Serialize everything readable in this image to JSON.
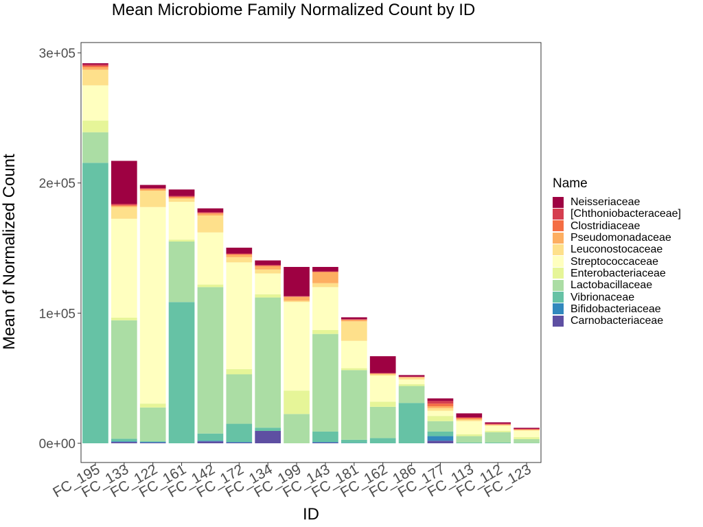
{
  "chart_data": {
    "type": "bar",
    "stacked": true,
    "title": "Mean Microbiome Family Normalized Count by ID",
    "xlabel": "ID",
    "ylabel": "Mean of Normalized Count",
    "ylim": [
      -15000,
      300000
    ],
    "y_ticks": [
      0,
      100000,
      200000,
      300000
    ],
    "y_tick_labels": [
      "0e+00",
      "1e+05",
      "2e+05",
      "3e+05"
    ],
    "grid": false,
    "legend_position": "right",
    "legend_title": "Name",
    "categories": [
      "FC_195",
      "FC_133",
      "FC_122",
      "FC_161",
      "FC_142",
      "FC_172",
      "FC_134",
      "FC_199",
      "FC_143",
      "FC_181",
      "FC_162",
      "FC_186",
      "FC_177",
      "FC_113",
      "FC_112",
      "FC_123"
    ],
    "series": [
      {
        "name": "Neisseriaceae",
        "color": "#9E0142",
        "values": [
          1000,
          33000,
          2500,
          5000,
          3000,
          4500,
          3500,
          22500,
          3500,
          1500,
          13000,
          1200,
          2000,
          3000,
          1000,
          800
        ]
      },
      {
        "name": "[Chthoniobacteraceae]",
        "color": "#D53E4F",
        "values": [
          1000,
          1000,
          500,
          500,
          500,
          500,
          500,
          300,
          200,
          300,
          200,
          200,
          2000,
          500,
          500,
          300
        ]
      },
      {
        "name": "Clostridiaceae",
        "color": "#F46D43",
        "values": [
          1000,
          500,
          500,
          500,
          500,
          300,
          500,
          200,
          300,
          300,
          200,
          200,
          2000,
          500,
          300,
          300
        ]
      },
      {
        "name": "Pseudomonadaceae",
        "color": "#FDAE61",
        "values": [
          2000,
          1000,
          1000,
          1000,
          1500,
          2000,
          2500,
          3000,
          8500,
          1000,
          500,
          300,
          1500,
          1000,
          300,
          300
        ]
      },
      {
        "name": "Leuconostocaceae",
        "color": "#FEE08B",
        "values": [
          12000,
          9000,
          12500,
          2500,
          13000,
          4000,
          3000,
          1000,
          3000,
          15000,
          1000,
          1500,
          2000,
          1000,
          500,
          500
        ]
      },
      {
        "name": "Streptococcaceae",
        "color": "#FFFFBF",
        "values": [
          27000,
          76000,
          151000,
          29000,
          40000,
          82000,
          16000,
          68000,
          33000,
          21000,
          20000,
          3500,
          4000,
          10000,
          4000,
          5000
        ]
      },
      {
        "name": "Enterobacteriaceae",
        "color": "#E6F598",
        "values": [
          9000,
          2000,
          3000,
          1500,
          2000,
          4000,
          2500,
          18000,
          3000,
          1500,
          4000,
          1500,
          4000,
          1500,
          1000,
          1500
        ]
      },
      {
        "name": "Lactobacillaceae",
        "color": "#ABDDA4",
        "values": [
          23500,
          91000,
          26000,
          46500,
          112500,
          38000,
          100000,
          22500,
          75000,
          53500,
          24000,
          13000,
          8000,
          5000,
          8000,
          3000
        ]
      },
      {
        "name": "Vibrionaceae",
        "color": "#66C2A5",
        "values": [
          215500,
          2000,
          500,
          108500,
          5500,
          14000,
          2500,
          0,
          8000,
          2500,
          4000,
          31000,
          3500,
          500,
          500,
          200
        ]
      },
      {
        "name": "Bifidobacteriaceae",
        "color": "#3288BD",
        "values": [
          0,
          500,
          500,
          0,
          500,
          500,
          0,
          0,
          500,
          200,
          0,
          0,
          3500,
          0,
          0,
          0
        ]
      },
      {
        "name": "Carnobacteriaceae",
        "color": "#5E4FA2",
        "values": [
          0,
          1000,
          500,
          0,
          1500,
          500,
          9500,
          0,
          500,
          0,
          0,
          0,
          2000,
          0,
          0,
          0
        ]
      }
    ]
  }
}
